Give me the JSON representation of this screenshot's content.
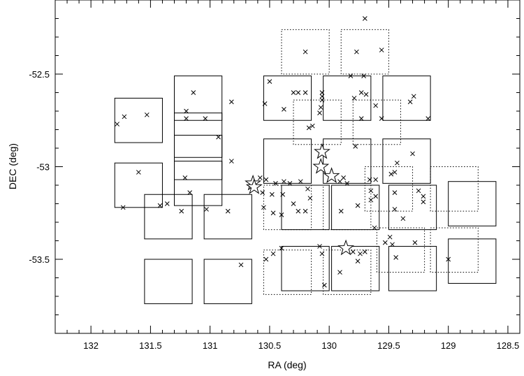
{
  "chart_data": {
    "type": "scatter",
    "title": "",
    "xlabel": "RA (deg)",
    "ylabel": "DEC (deg)",
    "xlim": [
      132.3,
      128.4
    ],
    "ylim": [
      -53.9,
      -52.1
    ],
    "x_reversed": true,
    "grid": false,
    "legend": "none",
    "xticks": [
      "132",
      "131.5",
      "131",
      "130.5",
      "130",
      "129.5",
      "129",
      "128.5"
    ],
    "xtick_values": [
      132,
      131.5,
      131,
      130.5,
      130,
      129.5,
      129,
      128.5
    ],
    "yticks": [
      "-52.5",
      "-53",
      "-53.5"
    ],
    "ytick_values": [
      -52.5,
      -53,
      -53.5
    ],
    "series": [
      {
        "marker": "x",
        "points": [
          [
            131.78,
            -52.77
          ],
          [
            131.72,
            -52.73
          ],
          [
            131.53,
            -52.72
          ],
          [
            131.6,
            -53.03
          ],
          [
            131.73,
            -53.22
          ],
          [
            131.14,
            -52.6
          ],
          [
            131.2,
            -52.7
          ],
          [
            131.2,
            -52.74
          ],
          [
            131.04,
            -52.74
          ],
          [
            130.82,
            -52.65
          ],
          [
            130.93,
            -52.84
          ],
          [
            131.21,
            -53.06
          ],
          [
            131.17,
            -53.14
          ],
          [
            131.03,
            -53.23
          ],
          [
            130.82,
            -52.97
          ],
          [
            131.42,
            -53.21
          ],
          [
            131.36,
            -53.2
          ],
          [
            131.24,
            -53.24
          ],
          [
            130.85,
            -53.24
          ],
          [
            130.74,
            -53.53
          ],
          [
            130.5,
            -52.54
          ],
          [
            130.54,
            -52.66
          ],
          [
            130.38,
            -52.69
          ],
          [
            130.3,
            -52.6
          ],
          [
            130.26,
            -52.6
          ],
          [
            130.2,
            -52.6
          ],
          [
            130.06,
            -52.6
          ],
          [
            130.2,
            -52.38
          ],
          [
            130.06,
            -52.62
          ],
          [
            130.06,
            -52.64
          ],
          [
            130.07,
            -52.68
          ],
          [
            130.08,
            -52.71
          ],
          [
            130.17,
            -52.79
          ],
          [
            130.14,
            -52.78
          ],
          [
            129.77,
            -52.38
          ],
          [
            129.7,
            -52.2
          ],
          [
            129.56,
            -52.37
          ],
          [
            129.82,
            -52.51
          ],
          [
            129.71,
            -52.51
          ],
          [
            129.73,
            -52.6
          ],
          [
            129.69,
            -52.61
          ],
          [
            129.79,
            -52.63
          ],
          [
            129.73,
            -52.74
          ],
          [
            129.61,
            -52.67
          ],
          [
            129.56,
            -52.74
          ],
          [
            129.32,
            -52.65
          ],
          [
            129.29,
            -52.62
          ],
          [
            129.17,
            -52.74
          ],
          [
            129.78,
            -52.89
          ],
          [
            129.43,
            -52.98
          ],
          [
            129.45,
            -53.03
          ],
          [
            129.3,
            -52.93
          ],
          [
            130.58,
            -53.06
          ],
          [
            130.53,
            -53.07
          ],
          [
            130.45,
            -53.09
          ],
          [
            130.38,
            -53.08
          ],
          [
            130.33,
            -53.09
          ],
          [
            130.24,
            -53.08
          ],
          [
            130.56,
            -53.14
          ],
          [
            130.48,
            -53.15
          ],
          [
            130.39,
            -53.15
          ],
          [
            130.55,
            -53.22
          ],
          [
            130.47,
            -53.25
          ],
          [
            130.4,
            -53.26
          ],
          [
            130.26,
            -53.24
          ],
          [
            130.2,
            -53.24
          ],
          [
            130.18,
            -53.12
          ],
          [
            130.16,
            -53.17
          ],
          [
            130.3,
            -53.2
          ],
          [
            129.91,
            -53.08
          ],
          [
            129.88,
            -53.06
          ],
          [
            129.85,
            -53.09
          ],
          [
            129.9,
            -53.24
          ],
          [
            129.76,
            -53.21
          ],
          [
            129.66,
            -53.07
          ],
          [
            129.65,
            -53.13
          ],
          [
            129.61,
            -53.07
          ],
          [
            129.61,
            -53.16
          ],
          [
            129.48,
            -53.04
          ],
          [
            129.45,
            -53.14
          ],
          [
            129.45,
            -53.23
          ],
          [
            129.38,
            -53.28
          ],
          [
            129.65,
            -53.18
          ],
          [
            129.25,
            -53.13
          ],
          [
            129.21,
            -53.16
          ],
          [
            129.21,
            -53.19
          ],
          [
            130.53,
            -53.5
          ],
          [
            130.47,
            -53.47
          ],
          [
            130.4,
            -53.44
          ],
          [
            130.08,
            -53.43
          ],
          [
            130.06,
            -53.47
          ],
          [
            130.04,
            -53.64
          ],
          [
            129.91,
            -53.57
          ],
          [
            129.8,
            -53.46
          ],
          [
            129.76,
            -53.51
          ],
          [
            129.74,
            -53.47
          ],
          [
            129.7,
            -53.46
          ],
          [
            129.62,
            -53.33
          ],
          [
            129.53,
            -53.41
          ],
          [
            129.49,
            -53.38
          ],
          [
            129.47,
            -53.42
          ],
          [
            129.44,
            -53.49
          ],
          [
            129.28,
            -53.41
          ],
          [
            129.0,
            -53.5
          ]
        ]
      },
      {
        "marker": "star",
        "points": [
          [
            130.06,
            -52.92
          ],
          [
            130.07,
            -53.0
          ],
          [
            129.98,
            -53.05
          ],
          [
            130.64,
            -53.09
          ],
          [
            130.63,
            -53.11
          ],
          [
            129.86,
            -53.44
          ]
        ]
      }
    ],
    "fields_solid": [
      [
        131.6,
        -52.75
      ],
      [
        131.1,
        -52.63
      ],
      [
        130.35,
        -52.63
      ],
      [
        129.85,
        -52.63
      ],
      [
        129.35,
        -52.63
      ],
      [
        131.6,
        -53.1
      ],
      [
        131.1,
        -52.83
      ],
      [
        131.1,
        -52.95
      ],
      [
        131.1,
        -53.09
      ],
      [
        130.35,
        -52.97
      ],
      [
        129.85,
        -52.97
      ],
      [
        129.35,
        -52.97
      ],
      [
        131.35,
        -53.27
      ],
      [
        130.85,
        -53.27
      ],
      [
        130.2,
        -53.22
      ],
      [
        129.78,
        -53.22
      ],
      [
        129.3,
        -53.22
      ],
      [
        128.8,
        -53.2
      ],
      [
        131.35,
        -53.62
      ],
      [
        130.85,
        -53.62
      ],
      [
        130.2,
        -53.55
      ],
      [
        129.78,
        -53.55
      ],
      [
        129.3,
        -53.55
      ],
      [
        128.8,
        -53.51
      ]
    ],
    "fields_dotted": [
      [
        130.2,
        -52.38
      ],
      [
        129.7,
        -52.38
      ],
      [
        130.1,
        -52.76
      ],
      [
        129.6,
        -52.76
      ],
      [
        130.35,
        -53.22
      ],
      [
        129.85,
        -53.22
      ],
      [
        129.5,
        -53.12
      ],
      [
        128.95,
        -53.12
      ],
      [
        130.35,
        -53.57
      ],
      [
        129.85,
        -53.57
      ],
      [
        129.4,
        -53.45
      ],
      [
        128.95,
        -53.45
      ]
    ]
  }
}
